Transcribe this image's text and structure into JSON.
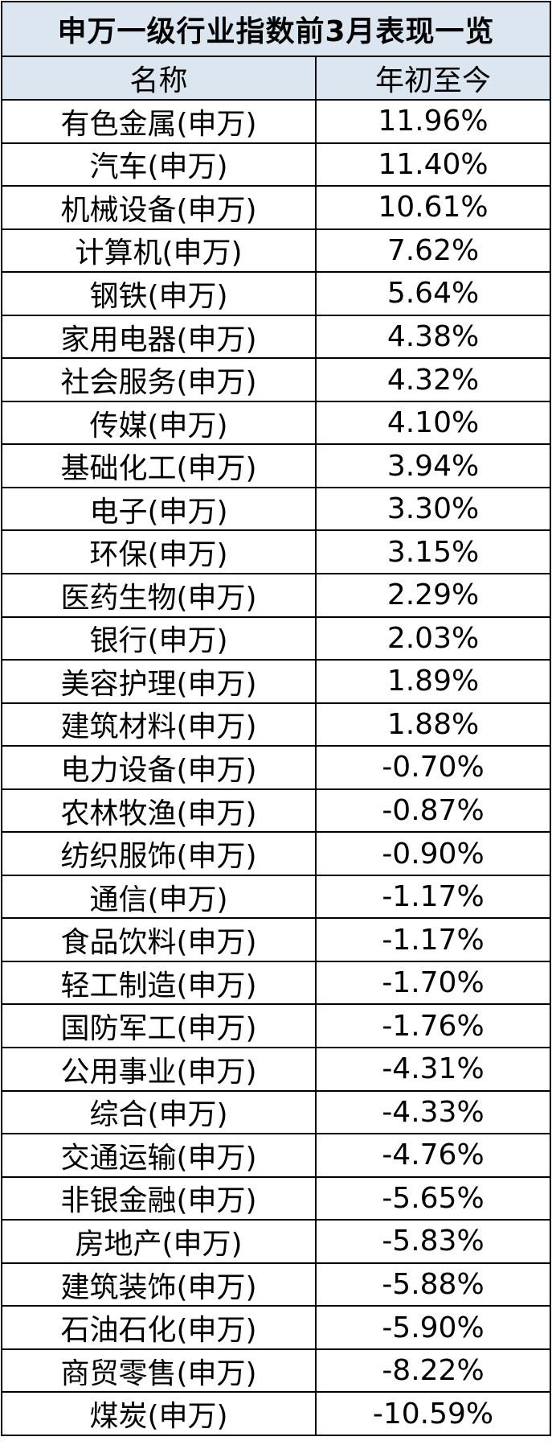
{
  "table": {
    "title": "申万一级行业指数前3月表现一览",
    "headers": [
      "名称",
      "年初至今"
    ],
    "rows": [
      {
        "name": "有色金属(申万)",
        "value": "11.96%"
      },
      {
        "name": "汽车(申万)",
        "value": "11.40%"
      },
      {
        "name": "机械设备(申万)",
        "value": "10.61%"
      },
      {
        "name": "计算机(申万)",
        "value": "7.62%"
      },
      {
        "name": "钢铁(申万)",
        "value": "5.64%"
      },
      {
        "name": "家用电器(申万)",
        "value": "4.38%"
      },
      {
        "name": "社会服务(申万)",
        "value": "4.32%"
      },
      {
        "name": "传媒(申万)",
        "value": "4.10%"
      },
      {
        "name": "基础化工(申万)",
        "value": "3.94%"
      },
      {
        "name": "电子(申万)",
        "value": "3.30%"
      },
      {
        "name": "环保(申万)",
        "value": "3.15%"
      },
      {
        "name": "医药生物(申万)",
        "value": "2.29%"
      },
      {
        "name": "银行(申万)",
        "value": "2.03%"
      },
      {
        "name": "美容护理(申万)",
        "value": "1.89%"
      },
      {
        "name": "建筑材料(申万)",
        "value": "1.88%"
      },
      {
        "name": "电力设备(申万)",
        "value": "-0.70%"
      },
      {
        "name": "农林牧渔(申万)",
        "value": "-0.87%"
      },
      {
        "name": "纺织服饰(申万)",
        "value": "-0.90%"
      },
      {
        "name": "通信(申万)",
        "value": "-1.17%"
      },
      {
        "name": "食品饮料(申万)",
        "value": "-1.17%"
      },
      {
        "name": "轻工制造(申万)",
        "value": "-1.70%"
      },
      {
        "name": "国防军工(申万)",
        "value": "-1.76%"
      },
      {
        "name": "公用事业(申万)",
        "value": "-4.31%"
      },
      {
        "name": "综合(申万)",
        "value": "-4.33%"
      },
      {
        "name": "交通运输(申万)",
        "value": "-4.76%"
      },
      {
        "name": "非银金融(申万)",
        "value": "-5.65%"
      },
      {
        "name": "房地产(申万)",
        "value": "-5.83%"
      },
      {
        "name": "建筑装饰(申万)",
        "value": "-5.88%"
      },
      {
        "name": "石油石化(申万)",
        "value": "-5.90%"
      },
      {
        "name": "商贸零售(申万)",
        "value": "-8.22%"
      },
      {
        "name": "煤炭(申万)",
        "value": "-10.59%"
      }
    ]
  },
  "colors": {
    "header_background": "#DCE6F1",
    "border": "#000000",
    "text": "#000000"
  }
}
